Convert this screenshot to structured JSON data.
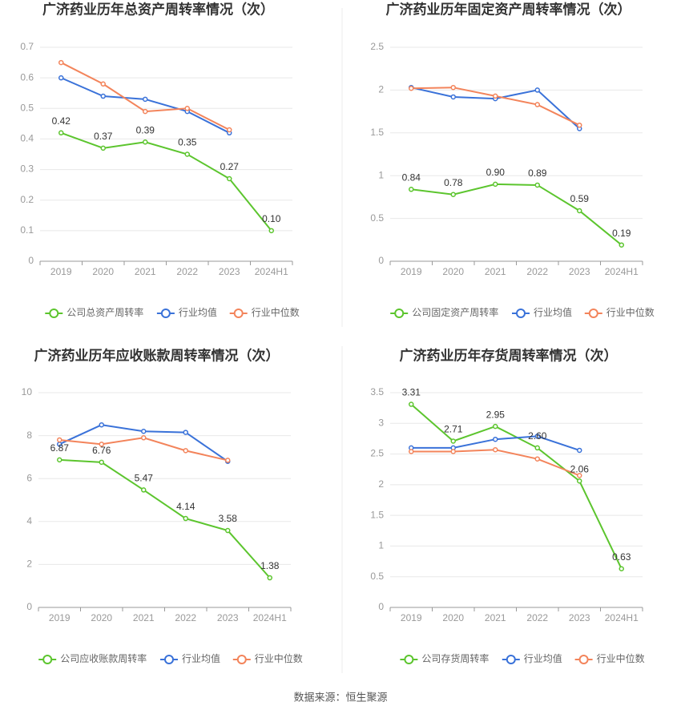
{
  "chart_data": [
    {
      "type": "line",
      "title": "广济药业历年总资产周转率情况（次）",
      "categories": [
        "2019",
        "2020",
        "2021",
        "2022",
        "2023",
        "2024H1"
      ],
      "series": [
        {
          "name": "公司总资产周转率",
          "color": "#5cc52e",
          "values": [
            0.42,
            0.37,
            0.39,
            0.35,
            0.27,
            0.1
          ],
          "value_labels": [
            "0.42",
            "0.37",
            "0.39",
            "0.35",
            "0.27",
            "0.10"
          ]
        },
        {
          "name": "行业均值",
          "color": "#3a72d9",
          "values": [
            0.6,
            0.54,
            0.53,
            0.49,
            0.42,
            null
          ]
        },
        {
          "name": "行业中位数",
          "color": "#f3845b",
          "values": [
            0.65,
            0.58,
            0.49,
            0.5,
            0.43,
            null
          ]
        }
      ],
      "ylim": [
        0,
        0.7
      ],
      "yticks": [
        0,
        0.1,
        0.2,
        0.3,
        0.4,
        0.5,
        0.6,
        0.7
      ],
      "grid": true
    },
    {
      "type": "line",
      "title": "广济药业历年固定资产周转率情况（次）",
      "categories": [
        "2019",
        "2020",
        "2021",
        "2022",
        "2023",
        "2024H1"
      ],
      "series": [
        {
          "name": "公司固定资产周转率",
          "color": "#5cc52e",
          "values": [
            0.84,
            0.78,
            0.9,
            0.89,
            0.59,
            0.19
          ],
          "value_labels": [
            "0.84",
            "0.78",
            "0.90",
            "0.89",
            "0.59",
            "0.19"
          ]
        },
        {
          "name": "行业均值",
          "color": "#3a72d9",
          "values": [
            2.03,
            1.92,
            1.9,
            2.0,
            1.55,
            null
          ]
        },
        {
          "name": "行业中位数",
          "color": "#f3845b",
          "values": [
            2.02,
            2.03,
            1.93,
            1.83,
            1.59,
            null
          ]
        }
      ],
      "ylim": [
        0,
        2.5
      ],
      "yticks": [
        0,
        0.5,
        1,
        1.5,
        2,
        2.5
      ],
      "grid": true
    },
    {
      "type": "line",
      "title": "广济药业历年应收账款周转率情况（次）",
      "categories": [
        "2019",
        "2020",
        "2021",
        "2022",
        "2023",
        "2024H1"
      ],
      "series": [
        {
          "name": "公司应收账款周转率",
          "color": "#5cc52e",
          "values": [
            6.87,
            6.76,
            5.47,
            4.14,
            3.58,
            1.38
          ]
        },
        {
          "name": "行业均值",
          "color": "#3a72d9",
          "values": [
            7.6,
            8.5,
            8.2,
            8.15,
            6.8,
            null
          ]
        },
        {
          "name": "行业中位数",
          "color": "#f3845b",
          "values": [
            7.8,
            7.6,
            7.9,
            7.3,
            6.85,
            null
          ]
        }
      ],
      "ylim": [
        0,
        10
      ],
      "yticks": [
        0,
        2,
        4,
        6,
        8,
        10
      ],
      "grid": true
    },
    {
      "type": "line",
      "title": "广济药业历年存货周转率情况（次）",
      "categories": [
        "2019",
        "2020",
        "2021",
        "2022",
        "2023",
        "2024H1"
      ],
      "series": [
        {
          "name": "公司存货周转率",
          "color": "#5cc52e",
          "values": [
            3.31,
            2.71,
            2.95,
            2.6,
            2.06,
            0.63
          ],
          "value_labels": [
            "3.31",
            "2.71",
            "2.95",
            "2.60",
            "2.06",
            "0.63"
          ]
        },
        {
          "name": "行业均值",
          "color": "#3a72d9",
          "values": [
            2.6,
            2.6,
            2.74,
            2.79,
            2.56,
            null
          ]
        },
        {
          "name": "行业中位数",
          "color": "#f3845b",
          "values": [
            2.54,
            2.54,
            2.57,
            2.42,
            2.15,
            null
          ]
        }
      ],
      "ylim": [
        0,
        3.5
      ],
      "yticks": [
        0,
        0.5,
        1,
        1.5,
        2,
        2.5,
        3,
        3.5
      ],
      "grid": true
    }
  ],
  "source": "数据来源：恒生聚源"
}
